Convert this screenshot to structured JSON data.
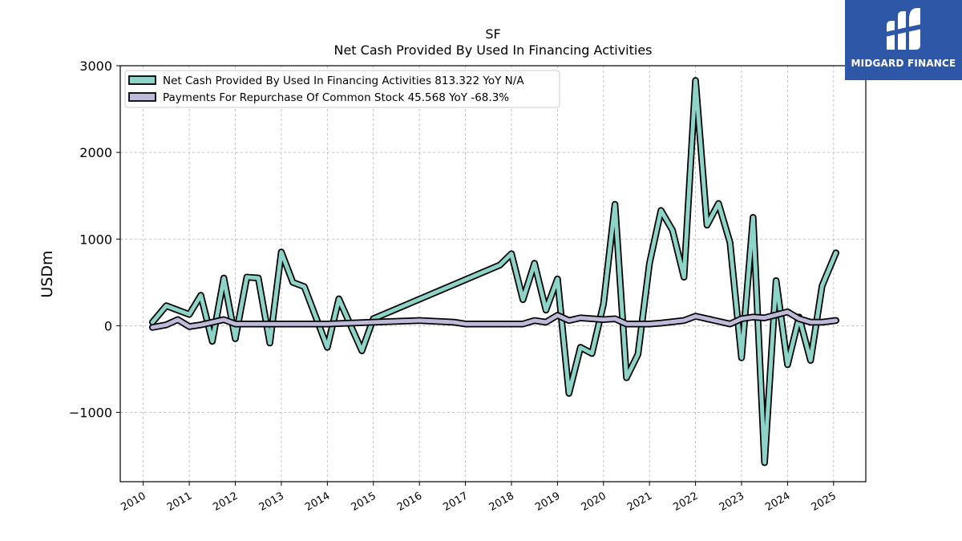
{
  "chart_data": {
    "type": "line",
    "title": "SF",
    "subtitle": "Net Cash Provided By Used In Financing Activities",
    "xlabel": "",
    "ylabel": "USDm",
    "ylim": [
      -1800,
      3000
    ],
    "yticks": [
      -1000,
      0,
      1000,
      2000,
      3000
    ],
    "ytick_labels": [
      "−1000",
      "0",
      "1000",
      "2000",
      "3000"
    ],
    "xlim": [
      2009.5,
      2025.7
    ],
    "xticks": [
      2010,
      2011,
      2012,
      2013,
      2014,
      2015,
      2016,
      2017,
      2018,
      2019,
      2020,
      2021,
      2022,
      2023,
      2024,
      2025
    ],
    "grid": true,
    "legend_position": "top-left",
    "series": [
      {
        "name": "Net Cash Provided By Used In Financing Activities  813.322 YoY N/A",
        "color": "#8dd3c7",
        "points": [
          [
            2010.2,
            40
          ],
          [
            2010.5,
            230
          ],
          [
            2011.0,
            130
          ],
          [
            2011.25,
            350
          ],
          [
            2011.5,
            -180
          ],
          [
            2011.75,
            550
          ],
          [
            2012.0,
            -150
          ],
          [
            2012.25,
            560
          ],
          [
            2012.5,
            550
          ],
          [
            2012.75,
            -200
          ],
          [
            2013.0,
            850
          ],
          [
            2013.25,
            500
          ],
          [
            2013.5,
            450
          ],
          [
            2014.0,
            -250
          ],
          [
            2014.25,
            310
          ],
          [
            2014.75,
            -290
          ],
          [
            2015.0,
            80
          ],
          [
            2017.75,
            700
          ],
          [
            2018.0,
            830
          ],
          [
            2018.25,
            300
          ],
          [
            2018.5,
            720
          ],
          [
            2018.75,
            180
          ],
          [
            2019.0,
            540
          ],
          [
            2019.25,
            -780
          ],
          [
            2019.5,
            -250
          ],
          [
            2019.75,
            -320
          ],
          [
            2020.0,
            250
          ],
          [
            2020.25,
            1400
          ],
          [
            2020.5,
            -600
          ],
          [
            2020.75,
            -330
          ],
          [
            2021.0,
            720
          ],
          [
            2021.25,
            1330
          ],
          [
            2021.5,
            1100
          ],
          [
            2021.75,
            560
          ],
          [
            2022.0,
            2830
          ],
          [
            2022.25,
            1160
          ],
          [
            2022.5,
            1410
          ],
          [
            2022.75,
            960
          ],
          [
            2023.0,
            -370
          ],
          [
            2023.25,
            1250
          ],
          [
            2023.5,
            -1580
          ],
          [
            2023.75,
            520
          ],
          [
            2024.0,
            -450
          ],
          [
            2024.25,
            100
          ],
          [
            2024.5,
            -400
          ],
          [
            2024.75,
            460
          ],
          [
            2025.05,
            840
          ]
        ]
      },
      {
        "name": "Payments For Repurchase Of Common Stock  45.568 YoY -68.3%",
        "color": "#bebada",
        "points": [
          [
            2010.2,
            -20
          ],
          [
            2010.5,
            10
          ],
          [
            2010.75,
            70
          ],
          [
            2011.0,
            -10
          ],
          [
            2011.25,
            10
          ],
          [
            2011.75,
            70
          ],
          [
            2012.0,
            20
          ],
          [
            2014.0,
            20
          ],
          [
            2015.0,
            40
          ],
          [
            2016.0,
            60
          ],
          [
            2016.75,
            40
          ],
          [
            2017.0,
            20
          ],
          [
            2018.25,
            20
          ],
          [
            2018.5,
            60
          ],
          [
            2018.75,
            40
          ],
          [
            2019.0,
            120
          ],
          [
            2019.25,
            60
          ],
          [
            2019.5,
            90
          ],
          [
            2020.0,
            70
          ],
          [
            2020.25,
            80
          ],
          [
            2020.5,
            20
          ],
          [
            2021.0,
            20
          ],
          [
            2021.25,
            30
          ],
          [
            2021.75,
            60
          ],
          [
            2022.0,
            110
          ],
          [
            2022.25,
            80
          ],
          [
            2022.75,
            20
          ],
          [
            2023.0,
            80
          ],
          [
            2023.25,
            100
          ],
          [
            2023.5,
            90
          ],
          [
            2024.0,
            160
          ],
          [
            2024.25,
            80
          ],
          [
            2024.5,
            40
          ],
          [
            2024.75,
            40
          ],
          [
            2025.05,
            60
          ]
        ]
      }
    ]
  },
  "logo": {
    "text": "MIDGARD FINANCE",
    "background": "#2f57a8"
  }
}
